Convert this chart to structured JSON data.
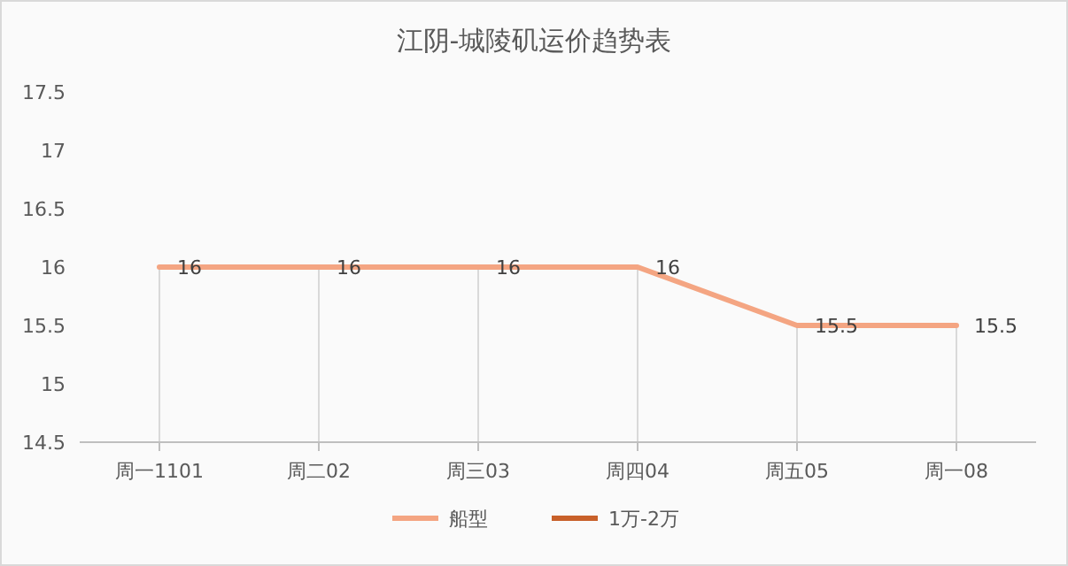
{
  "chart_data": {
    "type": "line",
    "title": "江阴-城陵矶运价趋势表",
    "categories": [
      "周一1101",
      "周二02",
      "周三03",
      "周四04",
      "周五05",
      "周一08"
    ],
    "series": [
      {
        "name": "船型",
        "color": "#f4a582",
        "values": [
          16,
          16,
          16,
          16,
          15.5,
          15.5
        ]
      },
      {
        "name": "1万-2万",
        "color": "#c8602a",
        "values": [
          null,
          null,
          null,
          null,
          null,
          null
        ]
      }
    ],
    "ylim": [
      14.5,
      17.5
    ],
    "yticks": [
      14.5,
      15,
      15.5,
      16,
      16.5,
      17,
      17.5
    ],
    "grid": false,
    "legend": "bottom",
    "data_labels": true,
    "marker": "none"
  }
}
